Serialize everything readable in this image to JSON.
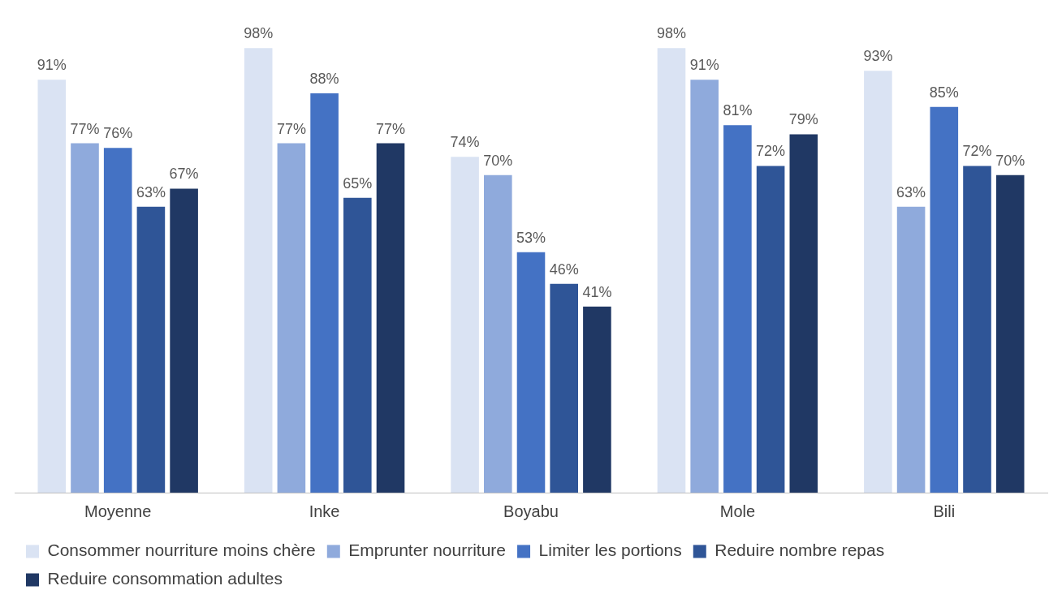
{
  "chart_data": {
    "type": "bar",
    "categories": [
      "Moyenne",
      "Inke",
      "Boyabu",
      "Mole",
      "Bili"
    ],
    "series": [
      {
        "name": "Consommer nourriture moins chère",
        "color": "#dae3f3",
        "values": [
          91,
          98,
          74,
          98,
          93
        ],
        "value_labels": [
          "91%",
          "98%",
          "74%",
          "98%",
          "93%"
        ]
      },
      {
        "name": "Emprunter nourriture",
        "color": "#8faadc",
        "values": [
          77,
          77,
          70,
          91,
          63
        ],
        "value_labels": [
          "77%",
          "77%",
          "70%",
          "91%",
          "63%"
        ]
      },
      {
        "name": "Limiter les portions",
        "color": "#4472c4",
        "values": [
          76,
          88,
          53,
          81,
          85
        ],
        "value_labels": [
          "76%",
          "88%",
          "53%",
          "81%",
          "85%"
        ]
      },
      {
        "name": "Reduire nombre repas",
        "color": "#2f5597",
        "values": [
          63,
          65,
          46,
          72,
          72
        ],
        "value_labels": [
          "63%",
          "65%",
          "46%",
          "72%",
          "72%"
        ]
      },
      {
        "name": "Reduire consommation adultes",
        "color": "#203864",
        "values": [
          67,
          77,
          41,
          79,
          70
        ],
        "value_labels": [
          "67%",
          "77%",
          "41%",
          "79%",
          "70%"
        ]
      }
    ],
    "tick_labels": "x",
    "grid": false,
    "legend": "bottom"
  }
}
